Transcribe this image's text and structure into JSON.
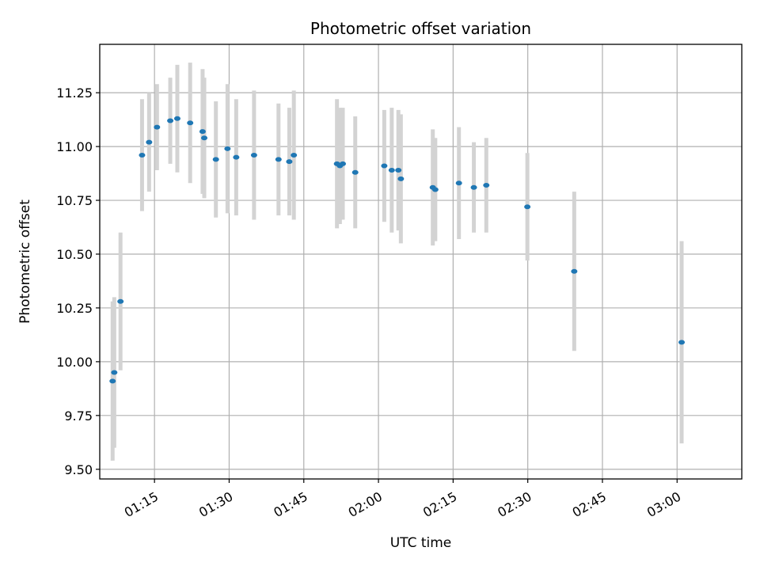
{
  "chart_data": {
    "type": "scatter",
    "title": "Photometric offset variation",
    "xlabel": "UTC time",
    "ylabel": "Photometric offset",
    "xlim": [
      "01:04",
      "03:13"
    ],
    "ylim": [
      9.455,
      11.475
    ],
    "grid": true,
    "x_ticks": [
      "01:15",
      "01:30",
      "01:45",
      "02:00",
      "02:15",
      "02:30",
      "02:45",
      "03:00"
    ],
    "y_ticks": [
      "9.50",
      "9.75",
      "10.00",
      "10.25",
      "10.50",
      "10.75",
      "11.00",
      "11.25"
    ],
    "colors": {
      "point": "#1f77b4",
      "errorbar": "#d3d3d3",
      "grid": "#b0b0b0"
    },
    "series": [
      {
        "points": [
          {
            "t": "01:06:35",
            "y": 9.91,
            "err": 0.37
          },
          {
            "t": "01:06:55",
            "y": 9.95,
            "err": 0.35
          },
          {
            "t": "01:08:10",
            "y": 10.28,
            "err": 0.32
          },
          {
            "t": "01:12:30",
            "y": 10.96,
            "err": 0.26
          },
          {
            "t": "01:13:55",
            "y": 11.02,
            "err": 0.23
          },
          {
            "t": "01:15:30",
            "y": 11.09,
            "err": 0.2
          },
          {
            "t": "01:18:10",
            "y": 11.12,
            "err": 0.2
          },
          {
            "t": "01:19:35",
            "y": 11.13,
            "err": 0.25
          },
          {
            "t": "01:22:10",
            "y": 11.11,
            "err": 0.28
          },
          {
            "t": "01:24:40",
            "y": 11.07,
            "err": 0.29
          },
          {
            "t": "01:25:00",
            "y": 11.04,
            "err": 0.28
          },
          {
            "t": "01:27:20",
            "y": 10.94,
            "err": 0.27
          },
          {
            "t": "01:29:40",
            "y": 10.99,
            "err": 0.3
          },
          {
            "t": "01:31:25",
            "y": 10.95,
            "err": 0.27
          },
          {
            "t": "01:35:00",
            "y": 10.96,
            "err": 0.3
          },
          {
            "t": "01:39:55",
            "y": 10.94,
            "err": 0.26
          },
          {
            "t": "01:42:05",
            "y": 10.93,
            "err": 0.25
          },
          {
            "t": "01:43:00",
            "y": 10.96,
            "err": 0.3
          },
          {
            "t": "01:51:40",
            "y": 10.92,
            "err": 0.3
          },
          {
            "t": "01:52:15",
            "y": 10.91,
            "err": 0.27
          },
          {
            "t": "01:52:50",
            "y": 10.92,
            "err": 0.26
          },
          {
            "t": "01:55:20",
            "y": 10.88,
            "err": 0.26
          },
          {
            "t": "02:01:10",
            "y": 10.91,
            "err": 0.26
          },
          {
            "t": "02:02:40",
            "y": 10.89,
            "err": 0.29
          },
          {
            "t": "02:04:00",
            "y": 10.89,
            "err": 0.28
          },
          {
            "t": "02:04:30",
            "y": 10.85,
            "err": 0.3
          },
          {
            "t": "02:10:55",
            "y": 10.81,
            "err": 0.27
          },
          {
            "t": "02:11:25",
            "y": 10.8,
            "err": 0.24
          },
          {
            "t": "02:16:10",
            "y": 10.83,
            "err": 0.26
          },
          {
            "t": "02:19:10",
            "y": 10.81,
            "err": 0.21
          },
          {
            "t": "02:21:40",
            "y": 10.82,
            "err": 0.22
          },
          {
            "t": "02:29:55",
            "y": 10.72,
            "err": 0.25
          },
          {
            "t": "02:39:20",
            "y": 10.42,
            "err": 0.37
          },
          {
            "t": "03:00:55",
            "y": 10.09,
            "err": 0.47
          }
        ]
      }
    ]
  }
}
